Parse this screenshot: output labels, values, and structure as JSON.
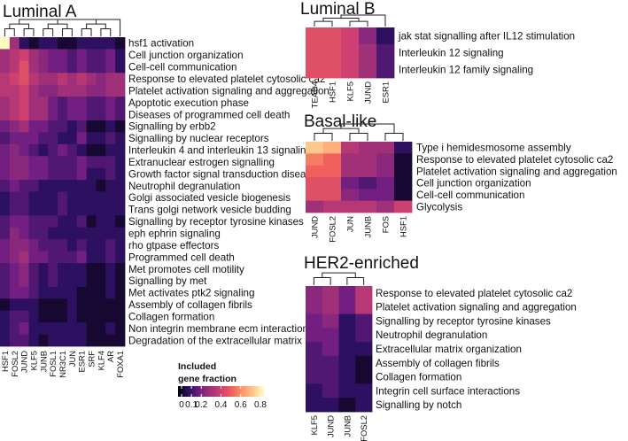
{
  "chart_data": [
    {
      "type": "heatmap",
      "title": "Luminal A",
      "rows": [
        "hsf1 activation",
        "Cell junction organization",
        "Cell-cell communication",
        "Response to elevated platelet cytosolic ca2",
        "Platelet activation signaling and aggregation",
        "Apoptotic execution phase",
        "Diseases of programmed cell death",
        "Signalling by erbb2",
        "Signalling by nuclear receptors",
        "Interleukin 4 and interleukin 13 signaling",
        "Extranuclear estrogen signalling",
        "Growth factor signal transduction diseases",
        "Neutrophil degranulation",
        "Golgi associated vesicle biogenesis",
        "Trans golgi network vesicle budding",
        "Signalling by receptor tyrosine kinases",
        "eph ephrin signaling",
        "rho gtpase effectors",
        "Programmed cell death",
        "Met promotes cell motility",
        "Signalling by met",
        "Met activates ptk2 signaling",
        "Assembly of collagen fibrils",
        "Collagen formation",
        "Non integrin membrane ecm interactions",
        "Degradation of the extracellular matrix"
      ],
      "columns": [
        "HSF1",
        "FOSL2",
        "JUND",
        "KLF5",
        "JUNB",
        "FOSL1",
        "NR3C1",
        "JUN",
        "ESR1",
        "SRF",
        "KLF4",
        "AR",
        "FOXA1"
      ],
      "values": [
        [
          0.8,
          0.3,
          0.1,
          0.05,
          0.1,
          0.1,
          0.05,
          0.05,
          0.1,
          0.1,
          0.1,
          0.1,
          0.05
        ],
        [
          0.3,
          0.35,
          0.4,
          0.3,
          0.25,
          0.2,
          0.2,
          0.15,
          0.2,
          0.15,
          0.15,
          0.2,
          0.1
        ],
        [
          0.3,
          0.35,
          0.45,
          0.3,
          0.25,
          0.2,
          0.2,
          0.15,
          0.2,
          0.15,
          0.15,
          0.2,
          0.1
        ],
        [
          0.35,
          0.4,
          0.45,
          0.35,
          0.3,
          0.3,
          0.35,
          0.3,
          0.35,
          0.3,
          0.25,
          0.3,
          0.3
        ],
        [
          0.35,
          0.35,
          0.4,
          0.3,
          0.25,
          0.25,
          0.3,
          0.3,
          0.3,
          0.25,
          0.25,
          0.3,
          0.3
        ],
        [
          0.3,
          0.35,
          0.4,
          0.3,
          0.3,
          0.2,
          0.15,
          0.2,
          0.2,
          0.15,
          0.15,
          0.2,
          0.15
        ],
        [
          0.3,
          0.35,
          0.4,
          0.3,
          0.3,
          0.2,
          0.15,
          0.2,
          0.2,
          0.15,
          0.15,
          0.2,
          0.15
        ],
        [
          0.2,
          0.25,
          0.3,
          0.2,
          0.2,
          0.15,
          0.15,
          0.1,
          0.15,
          0.05,
          0.05,
          0.1,
          0.05
        ],
        [
          0.15,
          0.2,
          0.2,
          0.2,
          0.15,
          0.15,
          0.1,
          0.1,
          0.2,
          0.1,
          0.1,
          0.15,
          0.1
        ],
        [
          0.2,
          0.25,
          0.2,
          0.15,
          0.1,
          0.15,
          0.2,
          0.15,
          0.1,
          0.05,
          0.05,
          0.1,
          0.1
        ],
        [
          0.2,
          0.25,
          0.25,
          0.2,
          0.2,
          0.15,
          0.15,
          0.15,
          0.2,
          0.15,
          0.15,
          0.15,
          0.1
        ],
        [
          0.2,
          0.25,
          0.25,
          0.2,
          0.2,
          0.15,
          0.15,
          0.15,
          0.2,
          0.1,
          0.1,
          0.15,
          0.1
        ],
        [
          0.15,
          0.2,
          0.15,
          0.15,
          0.1,
          0.1,
          0.1,
          0.1,
          0.1,
          0.1,
          0.05,
          0.1,
          0.1
        ],
        [
          0.1,
          0.15,
          0.15,
          0.1,
          0.1,
          0.1,
          0.15,
          0.1,
          0.1,
          0.1,
          0.1,
          0.1,
          0.1
        ],
        [
          0.1,
          0.15,
          0.15,
          0.1,
          0.1,
          0.1,
          0.15,
          0.1,
          0.1,
          0.1,
          0.1,
          0.1,
          0.1
        ],
        [
          0.15,
          0.2,
          0.2,
          0.15,
          0.15,
          0.15,
          0.1,
          0.1,
          0.15,
          0.05,
          0.1,
          0.1,
          0.05
        ],
        [
          0.15,
          0.25,
          0.2,
          0.15,
          0.15,
          0.1,
          0.1,
          0.1,
          0.1,
          0.1,
          0.1,
          0.1,
          0.1
        ],
        [
          0.2,
          0.25,
          0.25,
          0.2,
          0.15,
          0.15,
          0.15,
          0.1,
          0.15,
          0.1,
          0.1,
          0.15,
          0.1
        ],
        [
          0.2,
          0.25,
          0.3,
          0.2,
          0.2,
          0.15,
          0.15,
          0.15,
          0.2,
          0.1,
          0.1,
          0.15,
          0.1
        ],
        [
          0.15,
          0.2,
          0.25,
          0.15,
          0.1,
          0.15,
          0.1,
          0.1,
          0.1,
          0.05,
          0.05,
          0.1,
          0.05
        ],
        [
          0.15,
          0.2,
          0.25,
          0.15,
          0.1,
          0.15,
          0.1,
          0.1,
          0.1,
          0.05,
          0.05,
          0.1,
          0.05
        ],
        [
          0.15,
          0.2,
          0.2,
          0.15,
          0.1,
          0.1,
          0.1,
          0.1,
          0.05,
          0.05,
          0.05,
          0.1,
          0.05
        ],
        [
          0.05,
          0.1,
          0.1,
          0.1,
          0.05,
          0.05,
          0.05,
          0.1,
          0.05,
          0.05,
          0.05,
          0.05,
          0.05
        ],
        [
          0.1,
          0.15,
          0.15,
          0.1,
          0.05,
          0.05,
          0.05,
          0.1,
          0.05,
          0.05,
          0.05,
          0.05,
          0.05
        ],
        [
          0.1,
          0.15,
          0.2,
          0.1,
          0.1,
          0.1,
          0.1,
          0.1,
          0.1,
          0.05,
          0.05,
          0.1,
          0.05
        ],
        [
          0.1,
          0.15,
          0.15,
          0.1,
          0.05,
          0.1,
          0.1,
          0.1,
          0.1,
          0.05,
          0.05,
          0.05,
          0.05
        ]
      ]
    },
    {
      "type": "heatmap",
      "title": "Luminal B",
      "rows": [
        "jak stat signalling after IL12 stimulation",
        "Interleukin 12 signaling",
        "Interleukin 12 family signaling"
      ],
      "columns": [
        "TEAD4",
        "HSF1",
        "KLF5",
        "JUND",
        "ESR1"
      ],
      "values": [
        [
          0.45,
          0.45,
          0.4,
          0.25,
          0.1
        ],
        [
          0.45,
          0.45,
          0.4,
          0.3,
          0.15
        ],
        [
          0.45,
          0.45,
          0.4,
          0.3,
          0.15
        ]
      ]
    },
    {
      "type": "heatmap",
      "title": "Basal-like",
      "rows": [
        "Type i hemidesmosome assembly",
        "Response to elevated platelet cytosolic ca2",
        "Platelet activation signaling and aggregation",
        "Cell junction organization",
        "Cell-cell communication",
        "Glycolysis"
      ],
      "columns": [
        "JUND",
        "FOSL2",
        "JUN",
        "JUNB",
        "FOS",
        "HSF1"
      ],
      "values": [
        [
          0.7,
          0.65,
          0.35,
          0.3,
          0.3,
          0.1
        ],
        [
          0.55,
          0.5,
          0.3,
          0.3,
          0.25,
          0.05
        ],
        [
          0.5,
          0.5,
          0.3,
          0.3,
          0.25,
          0.05
        ],
        [
          0.45,
          0.45,
          0.2,
          0.15,
          0.2,
          0.05
        ],
        [
          0.45,
          0.45,
          0.25,
          0.2,
          0.2,
          0.05
        ],
        [
          0.3,
          0.35,
          0.35,
          0.35,
          0.3,
          0.4
        ]
      ]
    },
    {
      "type": "heatmap",
      "title": "HER2-enriched",
      "rows": [
        "Response to elevated platelet cytosolic ca2",
        "Platelet activation signaling and aggregation",
        "Signalling by receptor tyrosine kinases",
        "Neutrophil degranulation",
        "Extracellular matrix organization",
        "Assembly of collagen fibrils",
        "Collagen formation",
        "Integrin cell surface interactions",
        "Signalling by notch"
      ],
      "columns": [
        "KLF5",
        "JUND",
        "JUNB",
        "FOSL2"
      ],
      "values": [
        [
          0.25,
          0.3,
          0.2,
          0.35
        ],
        [
          0.25,
          0.3,
          0.2,
          0.35
        ],
        [
          0.2,
          0.25,
          0.1,
          0.15
        ],
        [
          0.2,
          0.2,
          0.1,
          0.15
        ],
        [
          0.15,
          0.2,
          0.1,
          0.1
        ],
        [
          0.15,
          0.15,
          0.1,
          0.05
        ],
        [
          0.15,
          0.15,
          0.1,
          0.05
        ],
        [
          0.1,
          0.15,
          0.1,
          0.1
        ],
        [
          0.1,
          0.1,
          0.05,
          0.1
        ]
      ]
    }
  ],
  "legend": {
    "title_line1": "Included",
    "title_line2": "gene fraction",
    "ticks": [
      "0",
      "0.1",
      "0.2",
      "0.4",
      "0.6",
      "0.8"
    ],
    "scale": "magma"
  }
}
